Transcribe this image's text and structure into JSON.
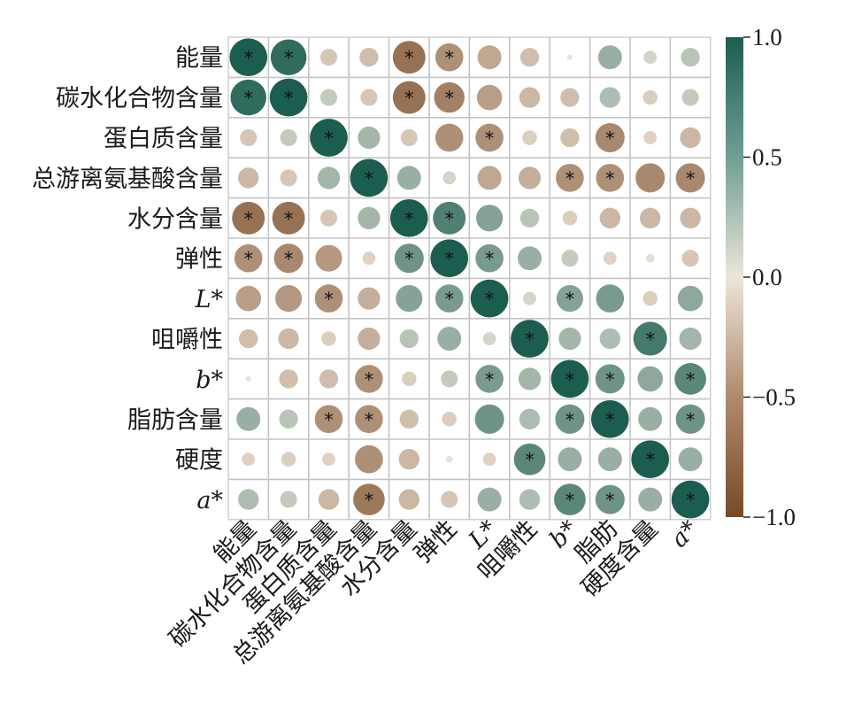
{
  "chart_data": {
    "type": "heatmap",
    "title": "",
    "xlabel": "",
    "ylabel": "",
    "row_labels": [
      "能量",
      "碳水化合物含量",
      "蛋白质含量",
      "总游离氨基酸含量",
      "水分含量",
      "弹性",
      "L*",
      "咀嚼性",
      "b*",
      "脂肪含量",
      "硬度",
      "a*"
    ],
    "col_labels": [
      "能量",
      "碳水化合物含量",
      "蛋白质含量",
      "总游离氨基酸含量",
      "水分含量",
      "弹性",
      "L*",
      "咀嚼性",
      "b*",
      "脂肪",
      "硬度含量",
      "a*"
    ],
    "italic_labels": [
      "L*",
      "b*",
      "a*"
    ],
    "values": [
      [
        1.0,
        0.9,
        -0.2,
        -0.25,
        -0.75,
        -0.55,
        -0.4,
        -0.25,
        0.02,
        0.4,
        0.12,
        0.25
      ],
      [
        0.9,
        1.0,
        0.2,
        -0.2,
        -0.75,
        -0.65,
        -0.45,
        -0.3,
        -0.25,
        0.3,
        -0.15,
        0.2
      ],
      [
        -0.2,
        0.2,
        1.0,
        0.35,
        -0.2,
        -0.55,
        -0.55,
        -0.15,
        -0.25,
        -0.6,
        -0.12,
        -0.3
      ],
      [
        -0.3,
        -0.2,
        0.35,
        1.0,
        0.4,
        0.12,
        -0.4,
        -0.35,
        -0.55,
        -0.55,
        -0.6,
        -0.6
      ],
      [
        -0.75,
        -0.75,
        -0.2,
        0.35,
        1.0,
        0.75,
        0.5,
        0.25,
        -0.15,
        -0.3,
        -0.3,
        -0.3
      ],
      [
        -0.55,
        -0.6,
        -0.5,
        -0.12,
        0.6,
        1.0,
        0.55,
        0.4,
        0.2,
        -0.12,
        0.05,
        -0.2
      ],
      [
        -0.45,
        -0.5,
        -0.55,
        -0.35,
        0.5,
        0.55,
        1.0,
        0.12,
        0.5,
        0.55,
        -0.15,
        0.45
      ],
      [
        -0.25,
        -0.3,
        -0.15,
        -0.35,
        0.25,
        0.4,
        0.12,
        1.0,
        0.35,
        0.3,
        0.8,
        0.35
      ],
      [
        0.02,
        -0.25,
        -0.25,
        -0.55,
        -0.15,
        0.2,
        0.55,
        0.35,
        1.0,
        0.6,
        0.45,
        0.7
      ],
      [
        0.4,
        0.25,
        -0.55,
        -0.55,
        -0.25,
        -0.15,
        0.6,
        0.3,
        0.6,
        1.0,
        0.4,
        0.6
      ],
      [
        -0.12,
        -0.15,
        -0.12,
        -0.55,
        -0.3,
        0.03,
        -0.12,
        0.7,
        0.4,
        0.4,
        1.0,
        0.4
      ],
      [
        0.3,
        0.2,
        -0.3,
        -0.7,
        -0.3,
        -0.2,
        0.4,
        0.3,
        0.7,
        0.6,
        0.4,
        1.0
      ]
    ],
    "significant": [
      [
        1,
        1,
        0,
        0,
        1,
        1,
        0,
        0,
        0,
        0,
        0,
        0
      ],
      [
        1,
        1,
        0,
        0,
        1,
        1,
        0,
        0,
        0,
        0,
        0,
        0
      ],
      [
        0,
        0,
        1,
        0,
        0,
        0,
        1,
        0,
        0,
        1,
        0,
        0
      ],
      [
        0,
        0,
        0,
        1,
        0,
        0,
        0,
        0,
        1,
        1,
        0,
        1
      ],
      [
        1,
        1,
        0,
        0,
        1,
        1,
        0,
        0,
        0,
        0,
        0,
        0
      ],
      [
        1,
        1,
        0,
        0,
        1,
        1,
        1,
        0,
        0,
        0,
        0,
        0
      ],
      [
        0,
        0,
        1,
        0,
        0,
        1,
        1,
        0,
        1,
        0,
        0,
        0
      ],
      [
        0,
        0,
        0,
        0,
        0,
        0,
        0,
        1,
        0,
        0,
        1,
        0
      ],
      [
        0,
        0,
        0,
        1,
        0,
        0,
        1,
        0,
        1,
        1,
        0,
        1
      ],
      [
        0,
        0,
        1,
        1,
        0,
        0,
        0,
        0,
        1,
        1,
        0,
        1
      ],
      [
        0,
        0,
        0,
        0,
        0,
        0,
        0,
        1,
        0,
        0,
        1,
        0
      ],
      [
        0,
        0,
        0,
        1,
        0,
        0,
        0,
        0,
        1,
        1,
        0,
        1
      ]
    ],
    "significance_marker": "*",
    "colorbar": {
      "min": -1.0,
      "max": 1.0,
      "ticks": [
        1.0,
        0.5,
        0.0,
        -0.5,
        -1.0
      ],
      "tick_labels": [
        "1.0",
        "0.5",
        "0.0",
        "−0.5",
        "−1.0"
      ],
      "color_neg": "#7a4a26",
      "color_mid": "#ede5da",
      "color_pos": "#1b5e50"
    }
  }
}
